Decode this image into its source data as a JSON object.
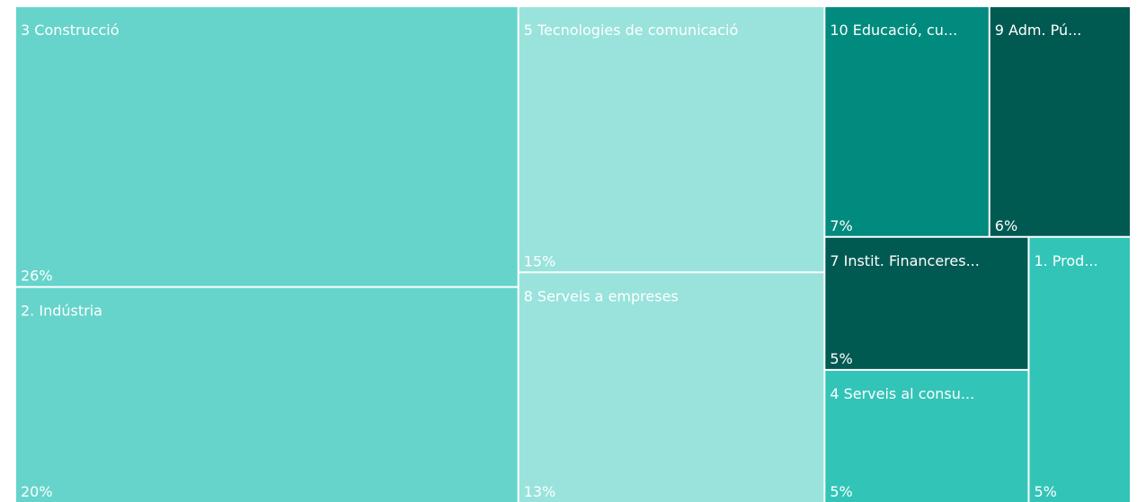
{
  "chart_data": {
    "type": "treemap",
    "categories": [
      "3 Construcció",
      "2. Indústria",
      "5 Tecnologies de comunicació",
      "8 Serveis a empreses",
      "10 Educació, cu...",
      "9 Adm. Pú...",
      "7 Instit. Financeres...",
      "4 Serveis al consu...",
      "1. Prod..."
    ],
    "values": [
      26,
      20,
      15,
      13,
      7,
      6,
      5,
      5,
      5
    ],
    "value_labels": [
      "26%",
      "20%",
      "15%",
      "13%",
      "7%",
      "6%",
      "5%",
      "5%",
      "5%"
    ],
    "colors": [
      "#66d4cb",
      "#66d4cb",
      "#99e3dc",
      "#99e3dc",
      "#008b7e",
      "#005a52",
      "#005a52",
      "#33c4b8",
      "#33c4b8"
    ]
  }
}
